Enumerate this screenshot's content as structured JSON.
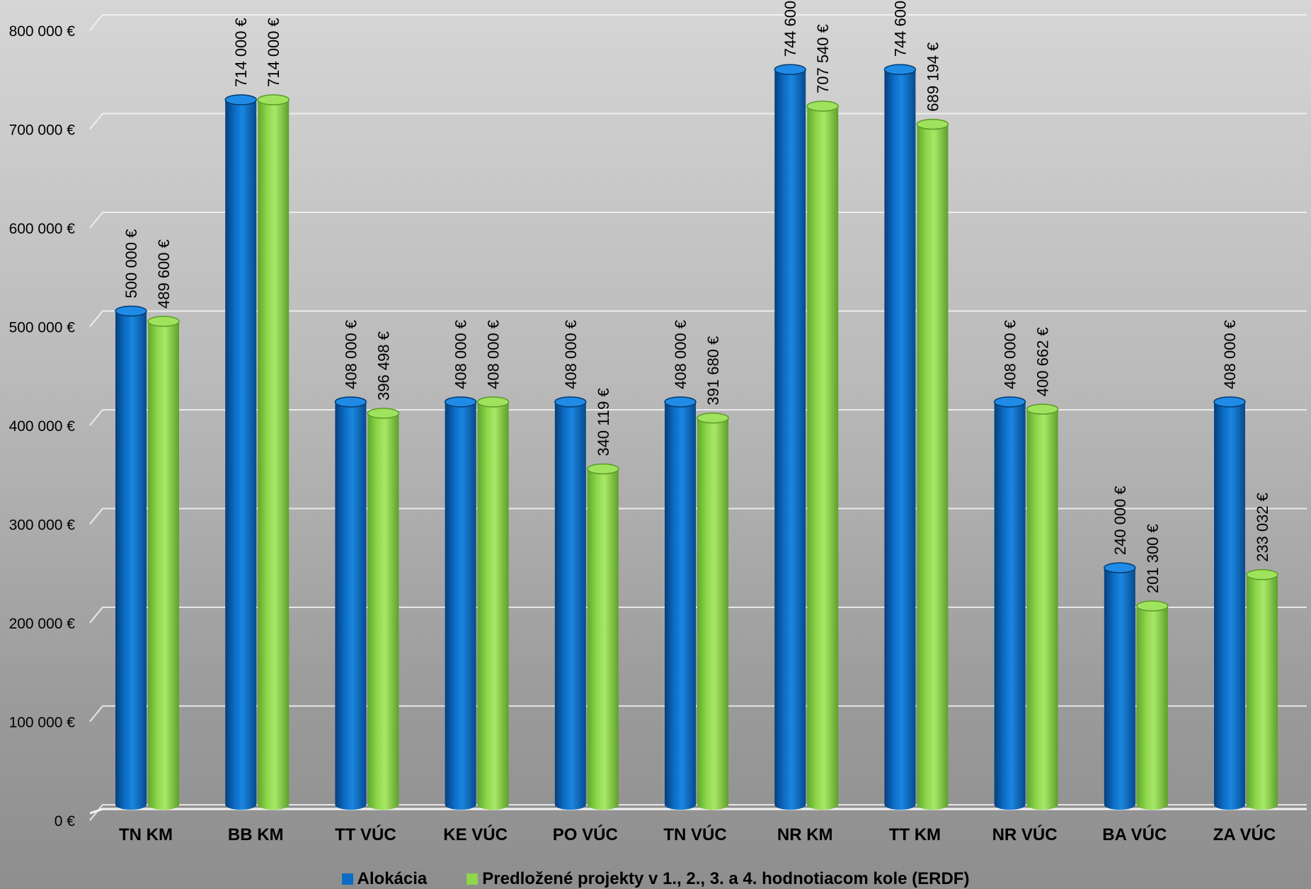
{
  "chart_data": {
    "type": "bar",
    "categories": [
      "TN KM",
      "BB KM",
      "TT VÚC",
      "KE VÚC",
      "PO VÚC",
      "TN VÚC",
      "NR KM",
      "TT KM",
      "NR VÚC",
      "BA VÚC",
      "ZA VÚC"
    ],
    "series": [
      {
        "name": "Alokácia",
        "values": [
          500000,
          714000,
          408000,
          408000,
          408000,
          408000,
          744600,
          744600,
          408000,
          240000,
          408000
        ],
        "labels": [
          "500 000 €",
          "714 000 €",
          "408 000 €",
          "408 000 €",
          "408 000 €",
          "408 000 €",
          "744 600",
          "744 600",
          "408 000 €",
          "240 000 €",
          "408 000 €"
        ],
        "color": "#0a6cc4"
      },
      {
        "name": "Predložené projekty v 1., 2., 3. a 4. hodnotiacom kole (ERDF)",
        "values": [
          489600,
          714000,
          396498,
          408000,
          340119,
          391680,
          707540,
          689194,
          400662,
          201300,
          233032
        ],
        "labels": [
          "489 600 €",
          "714 000 €",
          "396 498 €",
          "408 000 €",
          "340 119 €",
          "391 680 €",
          "707 540 €",
          "689 194 €",
          "400 662 €",
          "201 300 €",
          "233 032 €"
        ],
        "color": "#8ed64a"
      }
    ],
    "y_ticks": [
      {
        "value": 0,
        "label": "0 €"
      },
      {
        "value": 100000,
        "label": "100 000 €"
      },
      {
        "value": 200000,
        "label": "200 000 €"
      },
      {
        "value": 300000,
        "label": "300 000 €"
      },
      {
        "value": 400000,
        "label": "400 000 €"
      },
      {
        "value": 500000,
        "label": "500 000 €"
      },
      {
        "value": 600000,
        "label": "600 000 €"
      },
      {
        "value": 700000,
        "label": "700 000 €"
      },
      {
        "value": 800000,
        "label": "800 000 €"
      }
    ],
    "ylim": [
      0,
      800000
    ],
    "grid": true,
    "legend": "bottom",
    "title": "",
    "xlabel": "",
    "ylabel": ""
  }
}
